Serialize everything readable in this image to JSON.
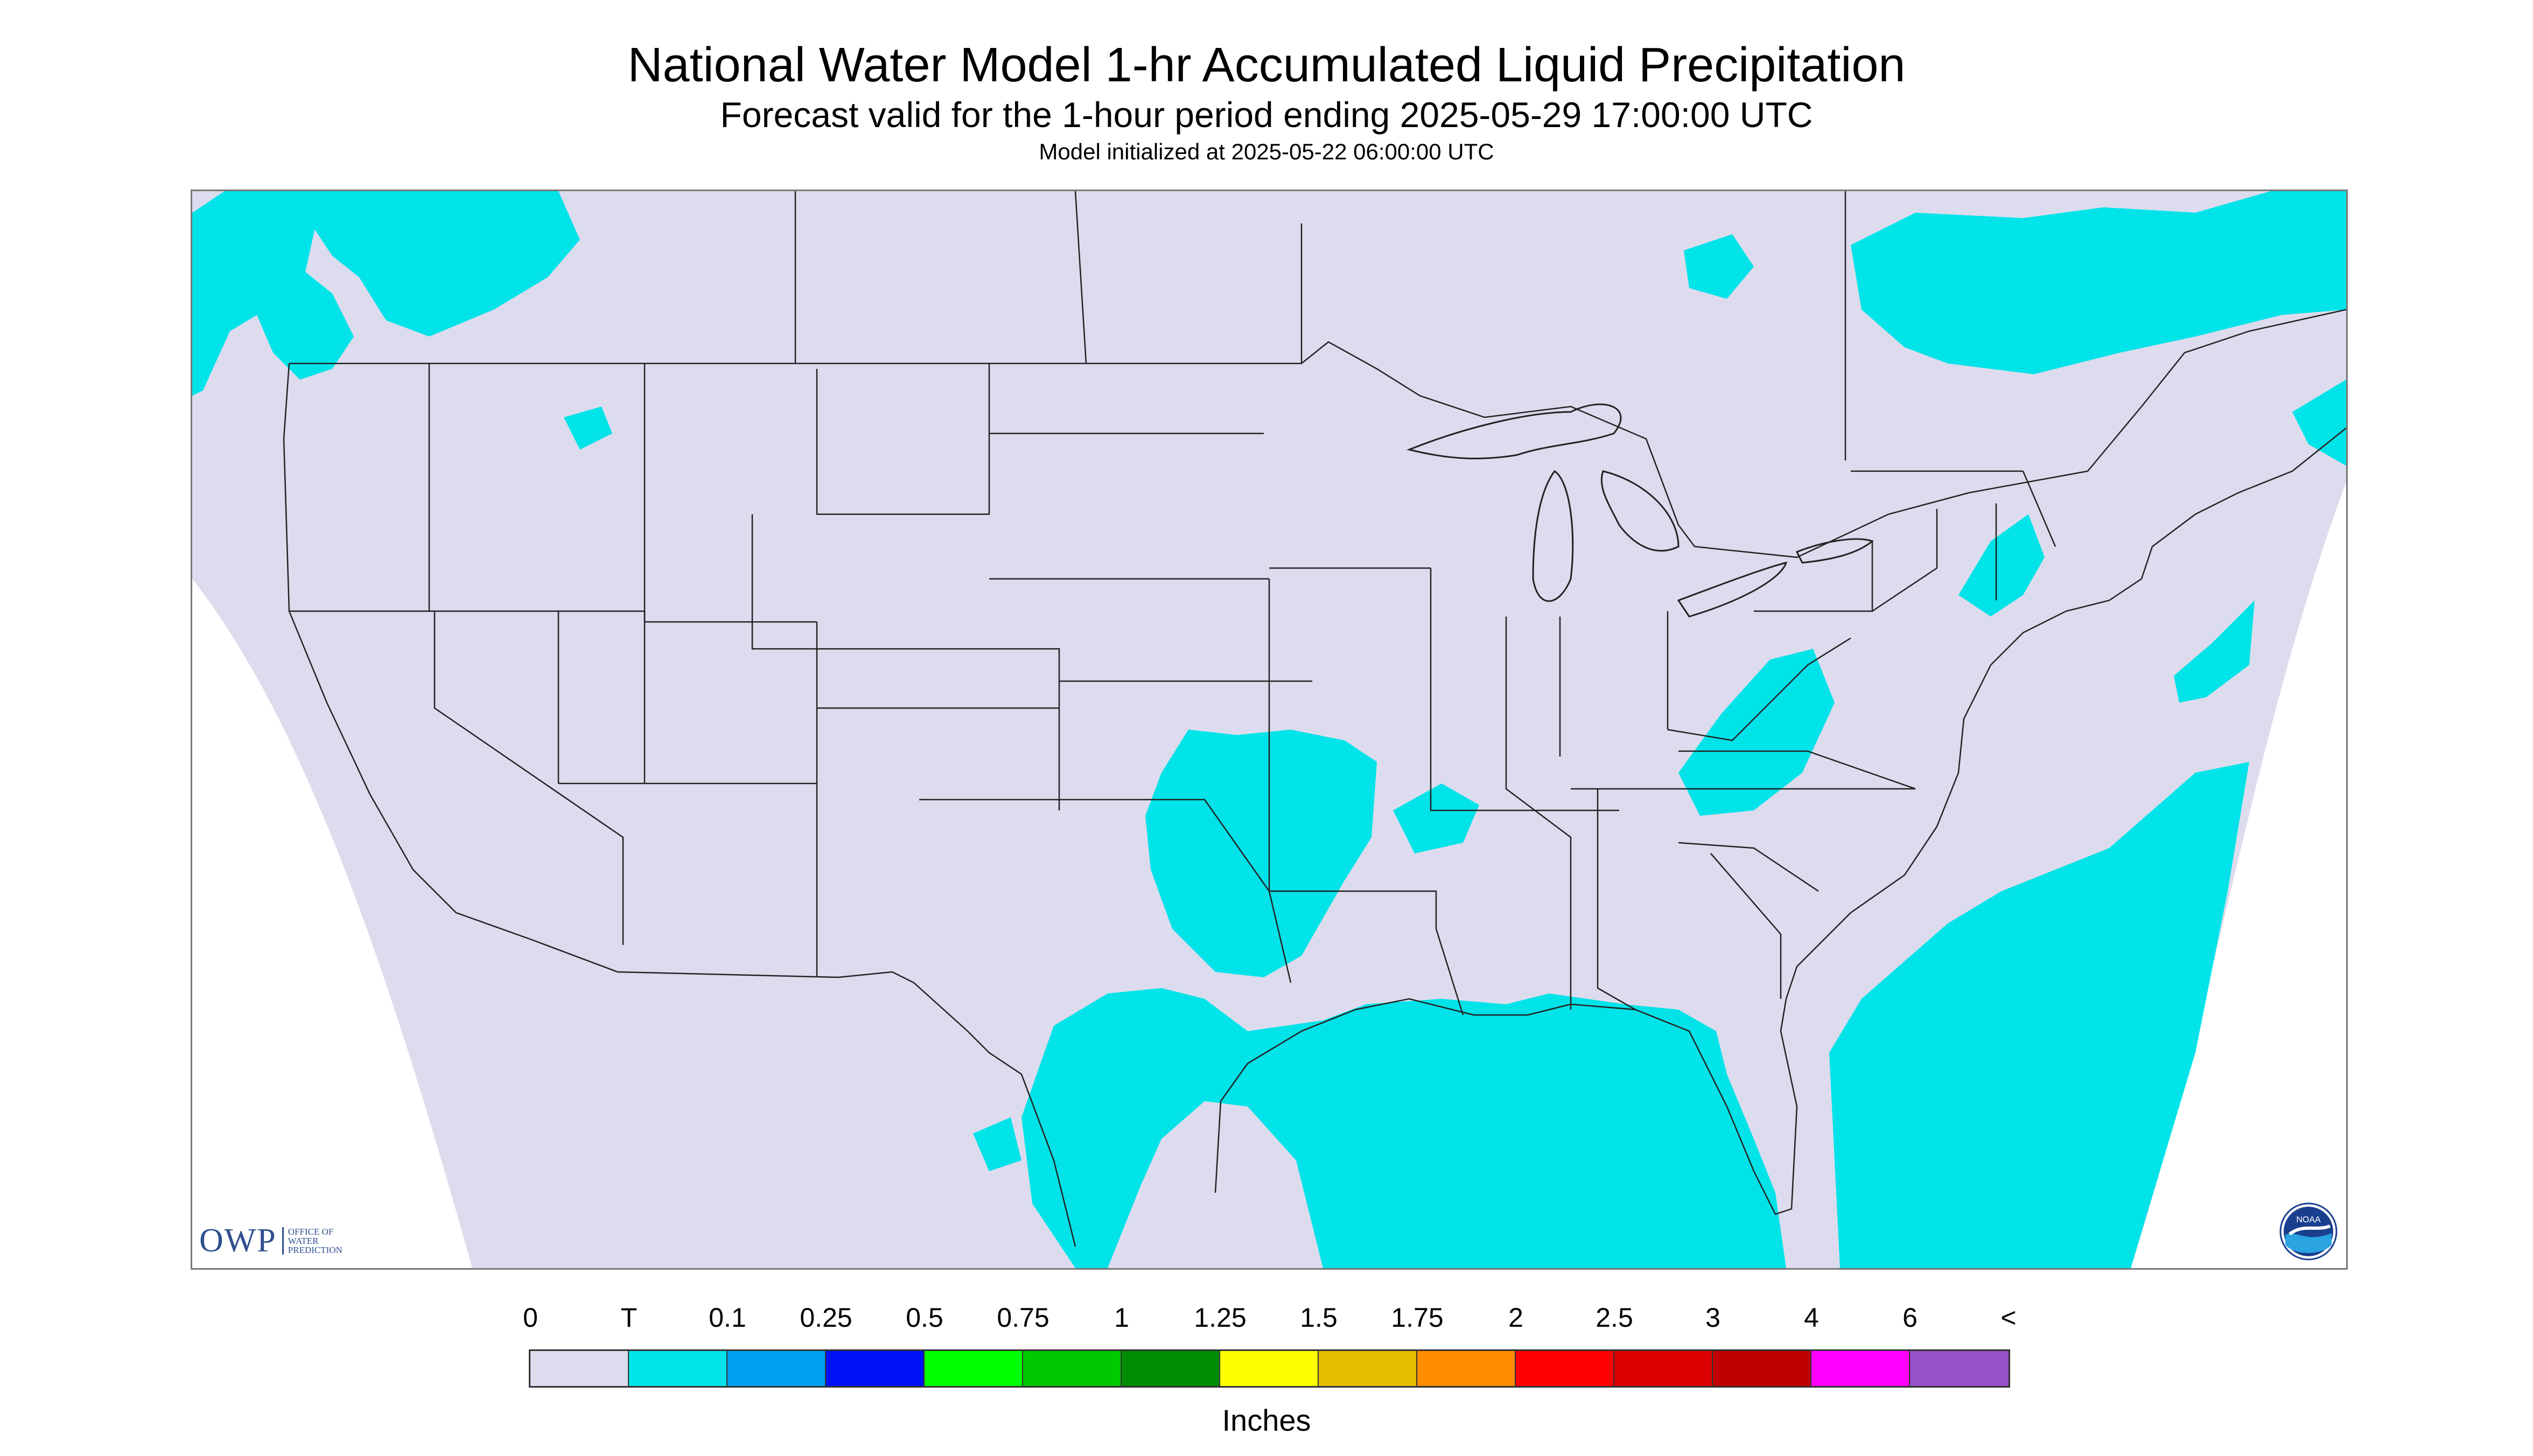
{
  "title": "National Water Model 1-hr Accumulated Liquid Precipitation",
  "subtitle": "Forecast valid for the 1-hour period ending 2025-05-29 17:00:00 UTC",
  "init_line": "Model initialized at 2025-05-22 06:00:00 UTC",
  "legend": {
    "labels": [
      "0",
      "T",
      "0.1",
      "0.25",
      "0.5",
      "0.75",
      "1",
      "1.25",
      "1.5",
      "1.75",
      "2",
      "2.5",
      "3",
      "4",
      "6",
      "<"
    ],
    "colors": [
      "#dcdcee",
      "#00e3e8",
      "#00a0f0",
      "#0010f5",
      "#00ff00",
      "#00c800",
      "#008c00",
      "#ffff00",
      "#e6be00",
      "#ff8c00",
      "#ff0000",
      "#dc0000",
      "#be0000",
      "#ff00ff",
      "#9650c8"
    ],
    "units": "Inches"
  },
  "colors": {
    "no_precip": "#dcdcee",
    "trace": "#00e3e8",
    "outside_domain": "#ffffff",
    "border_lines": "#222222"
  },
  "logos": {
    "owp": {
      "main": "OWP",
      "line1": "OFFICE OF",
      "line2": "WATER",
      "line3": "PREDICTION"
    },
    "noaa": {
      "text": "NOAA"
    }
  }
}
